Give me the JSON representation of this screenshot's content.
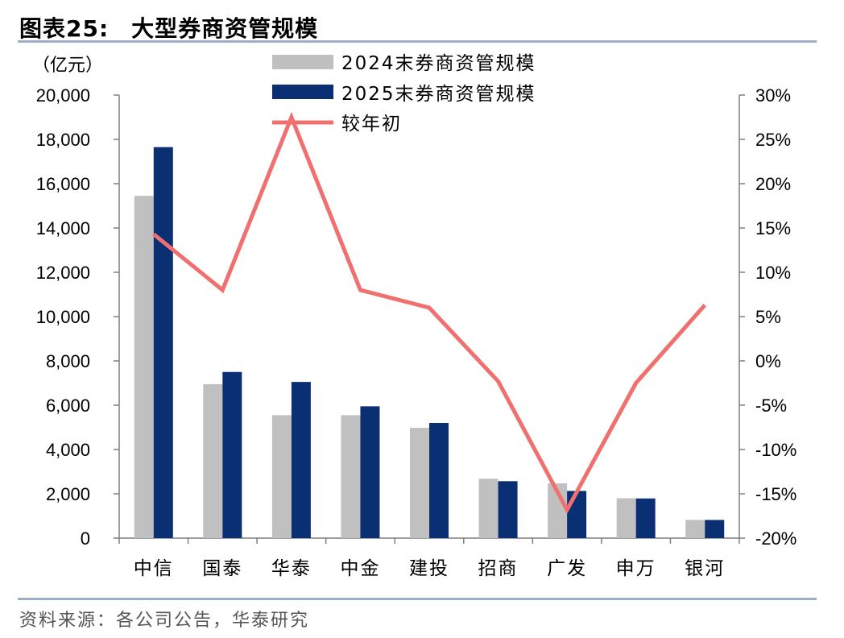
{
  "title": {
    "number": "图表25:",
    "text": "大型券商资管规模"
  },
  "source": "资料来源：各公司公告，华泰研究",
  "chart_data": {
    "type": "bar",
    "unit_label": "（亿元）",
    "categories": [
      "中信",
      "国泰",
      "华泰",
      "中金",
      "建投",
      "招商",
      "广发",
      "申万",
      "银河"
    ],
    "series": [
      {
        "name": "2024末券商资管规模",
        "type": "bar",
        "axis": "left",
        "color": "#c0c0c0",
        "values": [
          15450,
          6950,
          5550,
          5550,
          4980,
          2680,
          2470,
          1800,
          820
        ]
      },
      {
        "name": "2025末券商资管规模",
        "type": "bar",
        "axis": "left",
        "color": "#0a2f73",
        "values": [
          17650,
          7500,
          7050,
          5950,
          5200,
          2570,
          2130,
          1790,
          820
        ]
      },
      {
        "name": "较年初",
        "type": "line",
        "axis": "right",
        "color": "#f07070",
        "values": [
          14.3,
          8.0,
          27.5,
          8.0,
          6.0,
          -2.3,
          -16.8,
          -2.5,
          6.3
        ]
      }
    ],
    "y_left": {
      "min": 0,
      "max": 20000,
      "step": 2000,
      "tick_labels": [
        "0",
        "2,000",
        "4,000",
        "6,000",
        "8,000",
        "10,000",
        "12,000",
        "14,000",
        "16,000",
        "18,000",
        "20,000"
      ]
    },
    "y_right": {
      "min": -20,
      "max": 30,
      "step": 5,
      "tick_labels": [
        "-20%",
        "-15%",
        "-10%",
        "-5%",
        "0%",
        "5%",
        "10%",
        "15%",
        "20%",
        "25%",
        "30%"
      ]
    },
    "legend": "top-center",
    "grid": false
  }
}
